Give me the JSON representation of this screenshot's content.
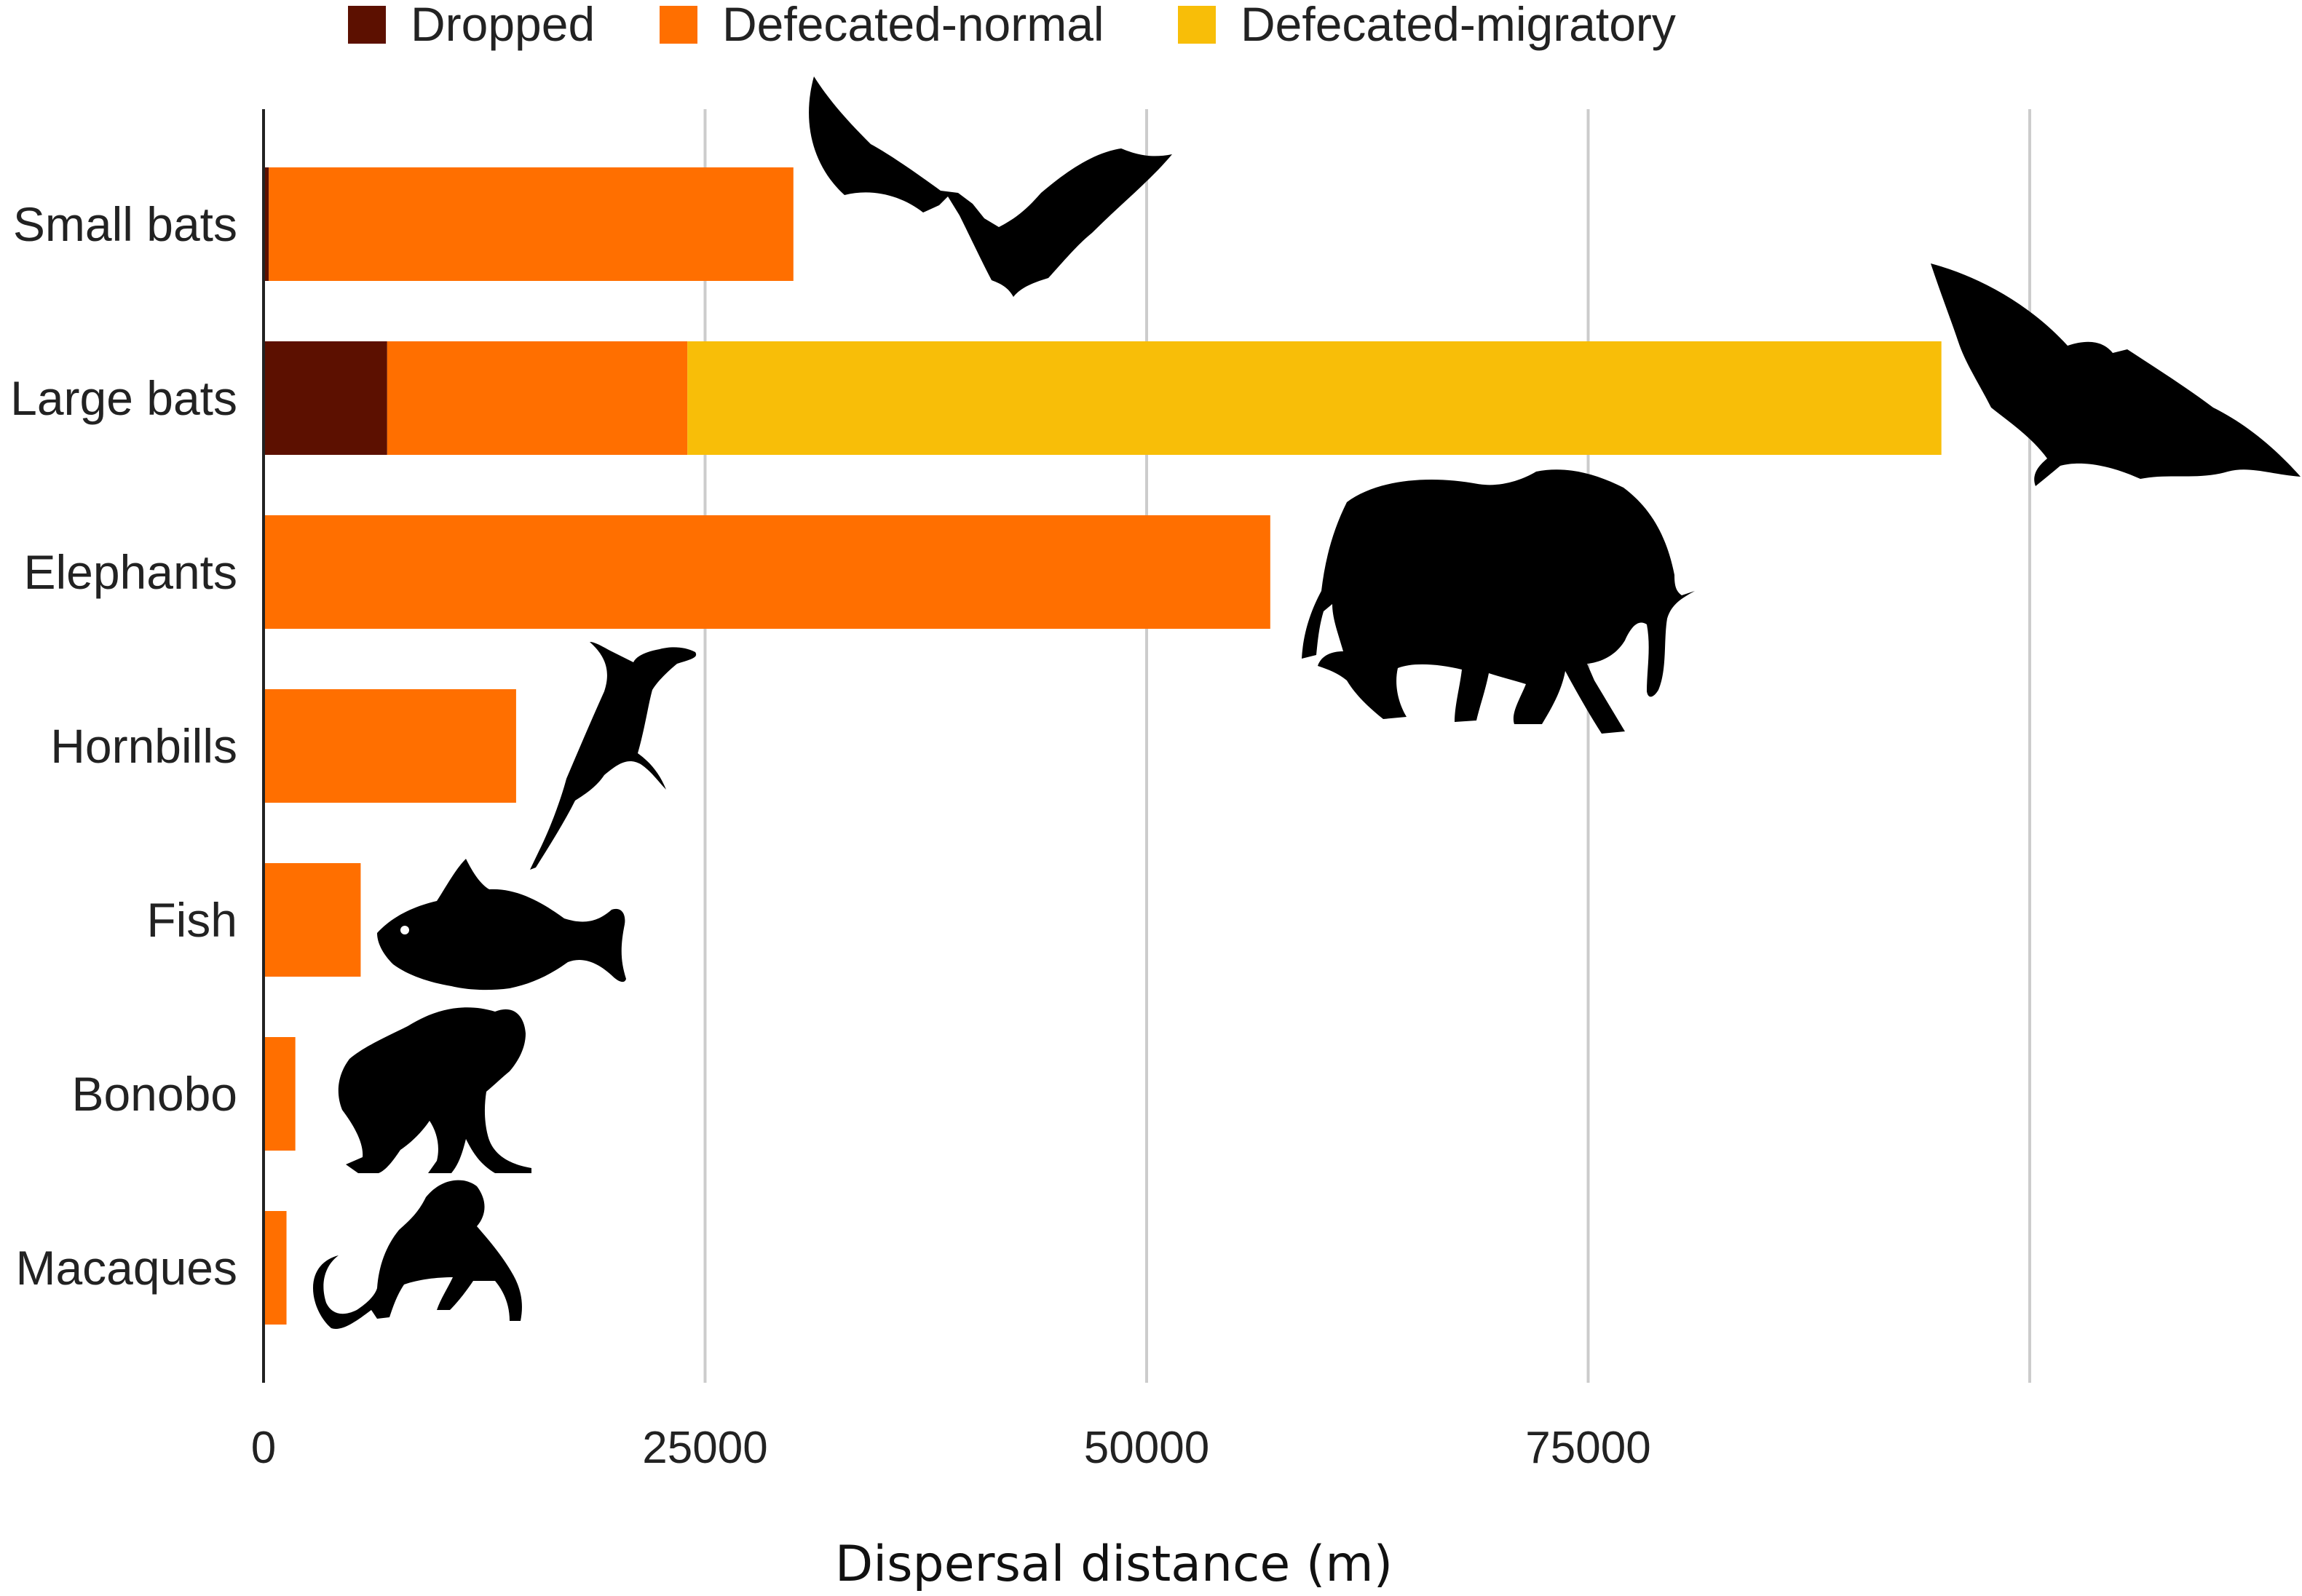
{
  "chart_data": {
    "type": "bar",
    "orientation": "horizontal",
    "stacked": true,
    "categories": [
      "Small bats",
      "Large bats",
      "Elephants",
      "Hornbills",
      "Fish",
      "Bonobo",
      "Macaques"
    ],
    "series": [
      {
        "name": "Dropped",
        "color": "#5c1000",
        "values": [
          300,
          7000,
          0,
          0,
          0,
          0,
          0
        ]
      },
      {
        "name": "Defecated-normal",
        "color": "#ff6f00",
        "values": [
          29700,
          17000,
          57000,
          14300,
          5500,
          1800,
          1300
        ]
      },
      {
        "name": "Defecated-migratory",
        "color": "#f8be08",
        "values": [
          0,
          71000,
          0,
          0,
          0,
          0,
          0
        ]
      }
    ],
    "xlabel": "Dispersal distance (m)",
    "ylabel": "",
    "xlim": [
      0,
      100000
    ],
    "xticks": [
      0,
      25000,
      50000,
      75000
    ],
    "xtick_labels": [
      "0",
      "25000",
      "50000",
      "75000"
    ],
    "gridlines": [
      25000,
      50000,
      75000,
      100000
    ],
    "grid": true,
    "legend_position": "top",
    "icons": [
      "small-bat-icon",
      "large-bat-icon",
      "elephant-icon",
      "hornbill-icon",
      "fish-icon",
      "bonobo-icon",
      "macaque-icon"
    ]
  }
}
